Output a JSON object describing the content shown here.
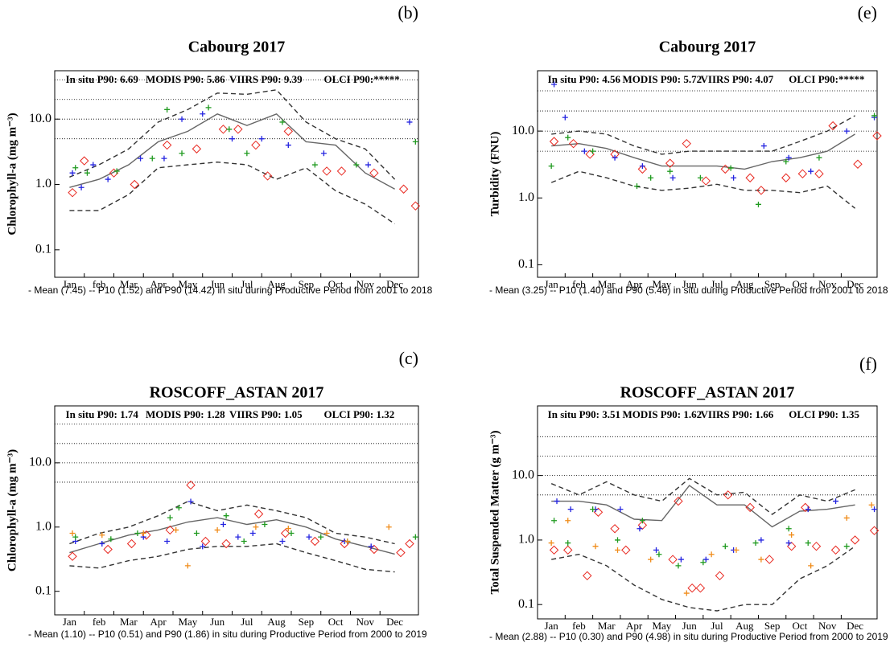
{
  "chart_data": [
    {
      "type": "scatter",
      "panel": "(b)",
      "title": "Cabourg 2017",
      "ylabel": "Chlorophyll-a (mg m⁻³)",
      "yscale": "log",
      "ylim": [
        0.038,
        55
      ],
      "yticks": [
        0.1,
        {
          "value": 1,
          "label": "1.0"
        },
        {
          "value": 10,
          "label": "10.0"
        }
      ],
      "hlines": [
        5,
        10,
        20,
        40
      ],
      "categories": [
        "Jan",
        "feb",
        "Mar",
        "Apr",
        "May",
        "Jun",
        "Jul",
        "Aug",
        "Sep",
        "Oct",
        "Nov",
        "Dec"
      ],
      "xlim": [
        0.5,
        12.8
      ],
      "series": [
        {
          "name": "In situ P90: 6.69",
          "color": "#e8271f",
          "marker": "diamond",
          "x": [
            1.1,
            1.5,
            2.5,
            3.2,
            4.3,
            5.3,
            6.2,
            6.7,
            7.3,
            7.7,
            8.4,
            9.7,
            10.2,
            11.3,
            12.3,
            12.7
          ],
          "values": [
            0.75,
            2.3,
            1.5,
            1.0,
            4.0,
            3.5,
            7,
            7,
            4,
            1.35,
            6.5,
            1.6,
            1.6,
            1.5,
            0.85,
            0.47
          ]
        },
        {
          "name": "MODIS P90: 5.86",
          "color": "#2323e0",
          "marker": "plus",
          "x": [
            1.1,
            1.4,
            1.8,
            2.3,
            3.4,
            4.2,
            4.8,
            5.5,
            6.5,
            7.5,
            8.4,
            9.6,
            11.1,
            12.5
          ],
          "values": [
            1.5,
            0.9,
            2,
            1.2,
            2.5,
            2.5,
            10,
            12,
            5,
            5,
            4,
            3,
            2,
            9
          ]
        },
        {
          "name": "VIIRS P90: 9.39",
          "color": "#1f9a1f",
          "marker": "plus",
          "x": [
            1.2,
            1.6,
            2.6,
            3.8,
            4.3,
            4.8,
            5.7,
            6.4,
            7,
            8.2,
            9.3,
            10.7,
            12.7
          ],
          "values": [
            1.8,
            1.5,
            1.6,
            2.5,
            14,
            3,
            15,
            7,
            3,
            9,
            2,
            2,
            4.5
          ]
        },
        {
          "name": "OLCI P90:*****",
          "color": "#f08c1a",
          "marker": "plus",
          "x": [],
          "values": []
        }
      ],
      "lines": [
        {
          "style": "solid",
          "color": "#666666",
          "x": [
            1,
            2,
            3,
            4,
            5,
            6,
            7,
            8,
            9,
            10,
            11,
            12
          ],
          "values": [
            0.9,
            1.2,
            2,
            4.5,
            6.5,
            12,
            8,
            12,
            4.5,
            4,
            1.5,
            0.85
          ]
        },
        {
          "style": "dashed",
          "color": "#333333",
          "x": [
            1,
            2,
            3,
            4,
            5,
            6,
            7,
            8,
            9,
            10,
            11,
            12
          ],
          "values": [
            1.3,
            2,
            3.5,
            9,
            14,
            25,
            24,
            28,
            9,
            5,
            3.5,
            1.2
          ]
        },
        {
          "style": "dashed",
          "color": "#333333",
          "x": [
            1,
            2,
            3,
            4,
            5,
            6,
            7,
            8,
            9,
            10,
            11,
            12
          ],
          "values": [
            0.4,
            0.4,
            0.7,
            1.8,
            2,
            2.2,
            2,
            1.2,
            1.8,
            0.8,
            0.5,
            0.25
          ]
        }
      ],
      "footnote": "- Mean (7.45) -- P10 (1.52) and P90 (14.42) in situ during Productive Period from 2001 to 2018"
    },
    {
      "type": "scatter",
      "panel": "(e)",
      "title": "Cabourg 2017",
      "ylabel": "Turbidity (FNU)",
      "yscale": "log",
      "ylim": [
        0.065,
        80
      ],
      "yticks": [
        0.1,
        {
          "value": 1,
          "label": "1.0"
        },
        {
          "value": 10,
          "label": "10.0"
        }
      ],
      "hlines": [
        5,
        10,
        20,
        40
      ],
      "categories": [
        "Jan",
        "feb",
        "Mar",
        "Apr",
        "May",
        "Jun",
        "Jul",
        "Aug",
        "Sep",
        "Oct",
        "Nov",
        "Dec"
      ],
      "xlim": [
        0.5,
        12.8
      ],
      "series": [
        {
          "name": "In situ P90: 4.56",
          "color": "#e8271f",
          "marker": "diamond",
          "x": [
            1.1,
            1.8,
            2.4,
            3.3,
            4.3,
            5.3,
            5.9,
            6.6,
            7.3,
            8.2,
            8.6,
            9.5,
            10.1,
            10.7,
            11.2,
            12.1,
            12.8
          ],
          "values": [
            7,
            6.5,
            4.5,
            4.5,
            2.7,
            3.3,
            6.5,
            1.8,
            2.7,
            2,
            1.3,
            2,
            2.3,
            2.3,
            12,
            3.2,
            8.5
          ]
        },
        {
          "name": "MODIS P90: 5.72",
          "color": "#2323e0",
          "marker": "plus",
          "x": [
            1.1,
            1.5,
            2.2,
            3.3,
            4.3,
            5.4,
            7.6,
            8.7,
            9.6,
            10.4,
            11.7,
            12.7
          ],
          "values": [
            50,
            16,
            5,
            4,
            3,
            2,
            2,
            6,
            4,
            2.5,
            10,
            16
          ]
        },
        {
          "name": "VIIRS P90: 4.07",
          "color": "#1f9a1f",
          "marker": "plus",
          "x": [
            1,
            1.6,
            2.5,
            4.1,
            4.6,
            5.3,
            6.4,
            7.5,
            8.5,
            9.5,
            10.7,
            12.7
          ],
          "values": [
            3,
            8,
            5,
            1.5,
            2,
            2.5,
            2,
            2.8,
            0.8,
            3.5,
            4,
            17
          ]
        },
        {
          "name": "OLCI P90:*****",
          "color": "#f08c1a",
          "marker": "plus",
          "x": [],
          "values": []
        }
      ],
      "lines": [
        {
          "style": "solid",
          "color": "#666666",
          "x": [
            1,
            2,
            3,
            4,
            5,
            6,
            7,
            8,
            9,
            10,
            11,
            12
          ],
          "values": [
            6,
            6.5,
            5.5,
            4,
            3,
            3,
            3,
            2.7,
            3.5,
            4,
            5,
            9
          ]
        },
        {
          "style": "dashed",
          "color": "#333333",
          "x": [
            1,
            2,
            3,
            4,
            5,
            6,
            7,
            8,
            9,
            10,
            11,
            12
          ],
          "values": [
            9,
            10,
            9,
            6,
            4.5,
            5,
            5,
            5,
            5,
            7,
            10,
            17
          ]
        },
        {
          "style": "dashed",
          "color": "#333333",
          "x": [
            1,
            2,
            3,
            4,
            5,
            6,
            7,
            8,
            9,
            10,
            11,
            12
          ],
          "values": [
            1.7,
            2.5,
            2,
            1.5,
            1.3,
            1.4,
            1.6,
            1.3,
            1.3,
            1.2,
            1.5,
            0.7
          ]
        }
      ],
      "footnote": "- Mean (3.25) -- P10 (1.40) and P90 (5.46) in situ during Productive Period from 2001 to 2018"
    },
    {
      "type": "scatter",
      "panel": "(c)",
      "title": "ROSCOFF_ASTAN 2017",
      "ylabel": "Chlorophyll-a (mg m⁻³)",
      "yscale": "log",
      "ylim": [
        0.043,
        77
      ],
      "yticks": [
        0.1,
        {
          "value": 1,
          "label": "1.0"
        },
        {
          "value": 10,
          "label": "10.0"
        }
      ],
      "hlines": [
        5,
        10,
        20,
        40
      ],
      "categories": [
        "Jan",
        "feb",
        "Mar",
        "Apr",
        "May",
        "Jun",
        "Jul",
        "Aug",
        "Sep",
        "Oct",
        "Nov",
        "Dec"
      ],
      "xlim": [
        0.5,
        12.8
      ],
      "series": [
        {
          "name": "In situ P90: 1.74",
          "color": "#e8271f",
          "marker": "diamond",
          "x": [
            1.1,
            2.3,
            3.1,
            3.6,
            4.4,
            5.1,
            5.6,
            6.3,
            7.4,
            8.3,
            9.3,
            10.3,
            11.3,
            12.2,
            12.5
          ],
          "values": [
            0.35,
            0.45,
            0.55,
            0.75,
            0.9,
            4.5,
            0.6,
            0.55,
            1.6,
            0.8,
            0.6,
            0.55,
            0.45,
            0.4,
            0.55
          ]
        },
        {
          "name": "MODIS P90: 1.28",
          "color": "#2323e0",
          "marker": "plus",
          "x": [
            1.2,
            2.1,
            3.5,
            4.3,
            5.1,
            5.5,
            6.2,
            6.7,
            7.2,
            8.2,
            9.1,
            10.3,
            11.2
          ],
          "values": [
            0.6,
            0.55,
            0.7,
            0.6,
            2.5,
            0.5,
            1.1,
            0.7,
            0.8,
            0.6,
            0.7,
            0.6,
            0.5
          ]
        },
        {
          "name": "VIIRS P90: 1.05",
          "color": "#1f9a1f",
          "marker": "plus",
          "x": [
            1.2,
            2.4,
            3.3,
            4.4,
            4.7,
            5.3,
            6.3,
            6.9,
            7.6,
            8.5,
            9.5,
            10.4,
            12.7
          ],
          "values": [
            0.7,
            0.65,
            0.8,
            1.4,
            2,
            0.8,
            1.5,
            0.6,
            1.1,
            0.8,
            0.7,
            0.6,
            0.7
          ]
        },
        {
          "name": "OLCI P90: 1.32",
          "color": "#f08c1a",
          "marker": "plus",
          "x": [
            1.1,
            2.1,
            3.5,
            4.6,
            5,
            6,
            7.3,
            8.4,
            9.7,
            10.4,
            11.8
          ],
          "values": [
            0.8,
            0.75,
            0.8,
            0.9,
            0.25,
            0.9,
            1,
            0.95,
            0.8,
            0.6,
            1
          ]
        }
      ],
      "lines": [
        {
          "style": "solid",
          "color": "#666666",
          "x": [
            1,
            2,
            3,
            4,
            5,
            6,
            7,
            8,
            9,
            10,
            11,
            12
          ],
          "values": [
            0.4,
            0.55,
            0.75,
            0.9,
            1.2,
            1.4,
            1.1,
            1.3,
            1,
            0.65,
            0.5,
            0.38
          ]
        },
        {
          "style": "dashed",
          "color": "#333333",
          "x": [
            1,
            2,
            3,
            4,
            5,
            6,
            7,
            8,
            9,
            10,
            11,
            12
          ],
          "values": [
            0.55,
            0.8,
            1,
            1.5,
            2.5,
            1.8,
            2.2,
            1.8,
            1.4,
            0.8,
            0.7,
            0.55
          ]
        },
        {
          "style": "dashed",
          "color": "#333333",
          "x": [
            1,
            2,
            3,
            4,
            5,
            6,
            7,
            8,
            9,
            10,
            11,
            12
          ],
          "values": [
            0.25,
            0.23,
            0.3,
            0.35,
            0.45,
            0.5,
            0.5,
            0.55,
            0.4,
            0.3,
            0.22,
            0.2
          ]
        }
      ],
      "footnote": "- Mean (1.10) -- P10 (0.51) and P90 (1.86) in situ during Productive Period from 2000 to 2019"
    },
    {
      "type": "scatter",
      "panel": "(f)",
      "title": "ROSCOFF_ASTAN 2017",
      "ylabel": "Total Suspended Matter (g m⁻³)",
      "yscale": "log",
      "ylim": [
        0.06,
        120
      ],
      "yticks": [
        0.1,
        {
          "value": 1,
          "label": "1.0"
        },
        {
          "value": 10,
          "label": "10.0"
        }
      ],
      "hlines": [
        5,
        10,
        20,
        40
      ],
      "categories": [
        "Jan",
        "feb",
        "Mar",
        "Apr",
        "May",
        "Jun",
        "Jul",
        "Aug",
        "Sep",
        "Oct",
        "Nov",
        "Dec"
      ],
      "xlim": [
        0.5,
        12.8
      ],
      "series": [
        {
          "name": "In situ P90: 3.51",
          "color": "#e8271f",
          "marker": "diamond",
          "x": [
            1.1,
            1.6,
            2.3,
            2.7,
            3.3,
            3.7,
            4.3,
            5.4,
            5.6,
            6.1,
            6.4,
            7.1,
            7.4,
            8.2,
            8.9,
            9.7,
            10.2,
            10.6,
            11.3,
            12,
            12.7
          ],
          "values": [
            0.7,
            0.7,
            0.28,
            2.7,
            1.5,
            0.7,
            1.7,
            0.5,
            4,
            0.18,
            0.18,
            0.28,
            5,
            3.2,
            0.5,
            0.8,
            3.2,
            0.8,
            0.7,
            1,
            1.4
          ]
        },
        {
          "name": "MODIS P90: 1.62",
          "color": "#2323e0",
          "marker": "plus",
          "x": [
            1.2,
            1.7,
            2.6,
            3.5,
            4.2,
            4.8,
            5.7,
            6.6,
            7.6,
            8.6,
            9.6,
            10.3,
            11.3,
            12.7
          ],
          "values": [
            4,
            3,
            3,
            3,
            1.5,
            0.7,
            0.5,
            0.5,
            0.7,
            1,
            0.9,
            3,
            4,
            3
          ]
        },
        {
          "name": "VIIRS P90: 1.66",
          "color": "#1f9a1f",
          "marker": "plus",
          "x": [
            1.1,
            1.6,
            2.5,
            3.4,
            4.3,
            4.9,
            5.6,
            6.5,
            7.3,
            8.4,
            9.6,
            10.3,
            11.7
          ],
          "values": [
            2,
            0.9,
            3,
            1,
            2,
            0.6,
            0.4,
            0.45,
            0.8,
            0.9,
            1.5,
            0.9,
            0.8
          ]
        },
        {
          "name": "OLCI P90: 1.35",
          "color": "#f08c1a",
          "marker": "plus",
          "x": [
            1,
            1.6,
            2.6,
            3.4,
            4.6,
            5.9,
            6.8,
            7.7,
            8.6,
            9.7,
            10.4,
            11.7,
            12.6
          ],
          "values": [
            0.9,
            2,
            0.8,
            0.7,
            0.5,
            0.15,
            0.6,
            0.7,
            0.5,
            1.2,
            0.4,
            2.2,
            3.5
          ]
        }
      ],
      "lines": [
        {
          "style": "solid",
          "color": "#666666",
          "x": [
            1,
            2,
            3,
            4,
            5,
            6,
            7,
            8,
            9,
            10,
            11,
            12
          ],
          "values": [
            4,
            4,
            3.5,
            2.1,
            2,
            7,
            3.5,
            3.5,
            1.6,
            2.8,
            3,
            3.5
          ]
        },
        {
          "style": "dashed",
          "color": "#333333",
          "x": [
            1,
            2,
            3,
            4,
            5,
            6,
            7,
            8,
            9,
            10,
            11,
            12
          ],
          "values": [
            7.5,
            5,
            8,
            5,
            4,
            9,
            5,
            5.5,
            2.5,
            5,
            4,
            6
          ]
        },
        {
          "style": "dashed",
          "color": "#333333",
          "x": [
            1,
            2,
            3,
            4,
            5,
            6,
            7,
            8,
            9,
            10,
            11,
            12
          ],
          "values": [
            0.5,
            0.6,
            0.4,
            0.2,
            0.12,
            0.09,
            0.08,
            0.1,
            0.1,
            0.25,
            0.4,
            0.8
          ]
        }
      ],
      "footnote": "- Mean (2.88) -- P10 (0.30) and P90 (4.98) in situ during Productive Period from 2000 to 2019"
    }
  ]
}
